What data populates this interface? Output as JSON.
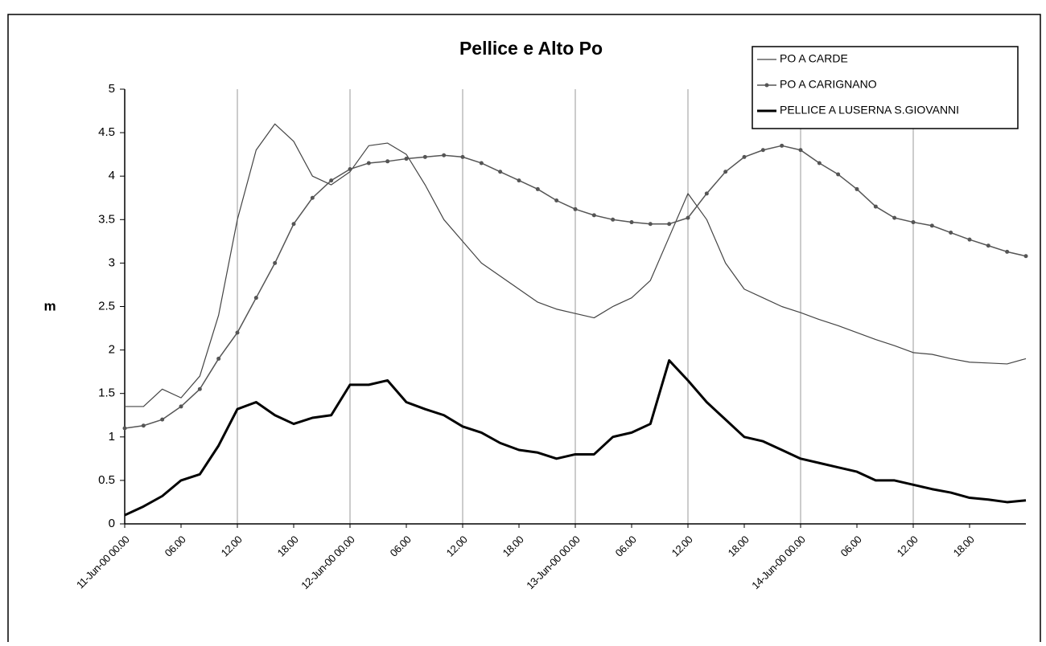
{
  "chart_data": {
    "type": "line",
    "title": "Pellice e Alto Po",
    "y_label": "m",
    "x": [
      0,
      2,
      4,
      6,
      8,
      10,
      12,
      14,
      16,
      18,
      20,
      22,
      24,
      26,
      28,
      30,
      32,
      34,
      36,
      38,
      40,
      42,
      44,
      46,
      48,
      50,
      52,
      54,
      56,
      58,
      60,
      62,
      64,
      66,
      68,
      70,
      72,
      74,
      76,
      78,
      80,
      82,
      84,
      86,
      88,
      90,
      92,
      94,
      96
    ],
    "xlim": [
      0,
      96
    ],
    "xticks": [
      {
        "value": 0,
        "label": "11-Jun-00 00.00"
      },
      {
        "value": 6,
        "label": "06.00"
      },
      {
        "value": 12,
        "label": "12.00"
      },
      {
        "value": 18,
        "label": "18.00"
      },
      {
        "value": 24,
        "label": "12-Jun-00 00.00"
      },
      {
        "value": 30,
        "label": "06.00"
      },
      {
        "value": 36,
        "label": "12.00"
      },
      {
        "value": 42,
        "label": "18.00"
      },
      {
        "value": 48,
        "label": "13-Jun-00 00.00"
      },
      {
        "value": 54,
        "label": "06.00"
      },
      {
        "value": 60,
        "label": "12.00"
      },
      {
        "value": 66,
        "label": "18.00"
      },
      {
        "value": 72,
        "label": "14-Jun-00 00.00"
      },
      {
        "value": 78,
        "label": "06.00"
      },
      {
        "value": 84,
        "label": "12.00"
      },
      {
        "value": 90,
        "label": "18.00"
      }
    ],
    "xgrid": [
      12,
      24,
      36,
      48,
      60,
      72,
      84
    ],
    "ylim": [
      0,
      5
    ],
    "yticks": [
      0,
      0.5,
      1,
      1.5,
      2,
      2.5,
      3,
      3.5,
      4,
      4.5,
      5
    ],
    "legend": "top-right",
    "series": [
      {
        "name": "PO A CARDE",
        "color": "#444444",
        "line_width": 1.2,
        "marker": "none",
        "values": [
          1.35,
          1.35,
          1.55,
          1.45,
          1.7,
          2.4,
          3.5,
          4.3,
          4.6,
          4.4,
          4.0,
          3.9,
          4.05,
          4.35,
          4.38,
          4.25,
          3.9,
          3.5,
          3.25,
          3.0,
          2.85,
          2.7,
          2.55,
          2.47,
          2.42,
          2.37,
          2.5,
          2.6,
          2.8,
          3.3,
          3.8,
          3.5,
          3.0,
          2.7,
          2.6,
          2.5,
          2.43,
          2.35,
          2.28,
          2.2,
          2.12,
          2.05,
          1.97,
          1.95,
          1.9,
          1.86,
          1.85,
          1.84,
          1.9
        ]
      },
      {
        "name": "PO A CARIGNANO",
        "color": "#555555",
        "line_width": 1.5,
        "marker": "circle",
        "values": [
          1.1,
          1.13,
          1.2,
          1.35,
          1.55,
          1.9,
          2.2,
          2.6,
          3.0,
          3.45,
          3.75,
          3.95,
          4.08,
          4.15,
          4.17,
          4.2,
          4.22,
          4.24,
          4.22,
          4.15,
          4.05,
          3.95,
          3.85,
          3.72,
          3.62,
          3.55,
          3.5,
          3.47,
          3.45,
          3.45,
          3.52,
          3.8,
          4.05,
          4.22,
          4.3,
          4.35,
          4.3,
          4.15,
          4.02,
          3.85,
          3.65,
          3.52,
          3.47,
          3.43,
          3.35,
          3.27,
          3.2,
          3.13,
          3.08
        ]
      },
      {
        "name": "PELLICE A LUSERNA S.GIOVANNI",
        "color": "#000000",
        "line_width": 3,
        "marker": "none",
        "values": [
          0.1,
          0.2,
          0.32,
          0.5,
          0.57,
          0.9,
          1.32,
          1.4,
          1.25,
          1.15,
          1.22,
          1.25,
          1.6,
          1.6,
          1.65,
          1.4,
          1.32,
          1.25,
          1.12,
          1.05,
          0.93,
          0.85,
          0.82,
          0.75,
          0.8,
          0.8,
          1.0,
          1.05,
          1.15,
          1.88,
          1.65,
          1.4,
          1.2,
          1.0,
          0.95,
          0.85,
          0.75,
          0.7,
          0.65,
          0.6,
          0.5,
          0.5,
          0.45,
          0.4,
          0.36,
          0.3,
          0.28,
          0.25,
          0.27
        ]
      }
    ]
  }
}
